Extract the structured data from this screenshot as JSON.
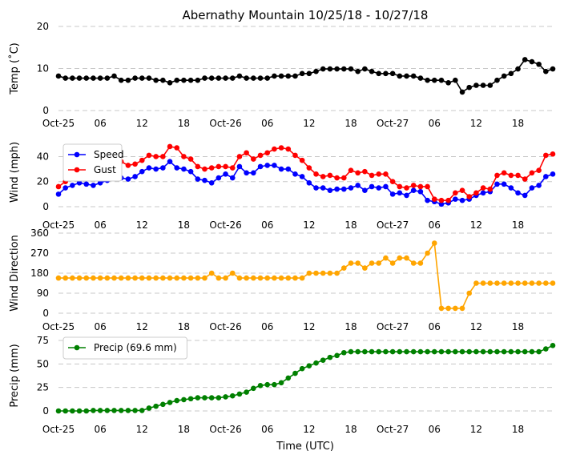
{
  "title": "Abernathy Mountain 10/25/18 - 10/27/18",
  "xlabel": "Time (UTC)",
  "x_tick_labels": [
    "Oct-25",
    "06",
    "12",
    "18",
    "Oct-26",
    "06",
    "12",
    "18",
    "Oct-27",
    "06",
    "12",
    "18"
  ],
  "x_tick_hours": [
    0,
    6,
    12,
    18,
    24,
    30,
    36,
    42,
    48,
    54,
    60,
    66
  ],
  "chart_data": [
    {
      "type": "line",
      "ylabel": "Temp ($^\\circ$C)",
      "ylabel_display": "Temp (˚C)",
      "ylim": [
        0,
        20
      ],
      "yticks": [
        0,
        10,
        20
      ],
      "xlim": [
        0,
        71
      ],
      "series": [
        {
          "name": "Temp",
          "color": "#000000",
          "x_hours": [
            0,
            1,
            2,
            3,
            4,
            5,
            6,
            7,
            8,
            9,
            10,
            11,
            12,
            13,
            14,
            15,
            16,
            17,
            18,
            19,
            20,
            21,
            22,
            23,
            24,
            25,
            26,
            27,
            28,
            29,
            30,
            31,
            32,
            33,
            34,
            35,
            36,
            37,
            38,
            39,
            40,
            41,
            42,
            43,
            44,
            45,
            46,
            47,
            48,
            49,
            50,
            51,
            52,
            53,
            54,
            55,
            56,
            57,
            58,
            59,
            60,
            61,
            62,
            63,
            64,
            65,
            66,
            67,
            68,
            69,
            70,
            71
          ],
          "values": [
            8.2,
            7.7,
            7.7,
            7.7,
            7.7,
            7.7,
            7.7,
            7.7,
            8.2,
            7.2,
            7.2,
            7.7,
            7.7,
            7.7,
            7.2,
            7.2,
            6.6,
            7.2,
            7.2,
            7.2,
            7.2,
            7.7,
            7.7,
            7.7,
            7.7,
            7.7,
            8.2,
            7.7,
            7.7,
            7.7,
            7.7,
            8.2,
            8.2,
            8.2,
            8.2,
            8.8,
            8.8,
            9.3,
            9.9,
            9.9,
            9.9,
            9.9,
            9.9,
            9.3,
            9.9,
            9.3,
            8.8,
            8.8,
            8.8,
            8.2,
            8.2,
            8.2,
            7.7,
            7.2,
            7.2,
            7.2,
            6.6,
            7.2,
            4.4,
            5.5,
            6.0,
            6.0,
            6.0,
            7.2,
            8.2,
            8.8,
            9.9,
            12.1,
            11.6,
            11.0,
            9.3,
            9.9
          ]
        }
      ]
    },
    {
      "type": "line",
      "ylabel": "Wind (mph)",
      "ylim": [
        0,
        55
      ],
      "yticks": [
        0,
        20,
        40
      ],
      "xlim": [
        0,
        71
      ],
      "legend": "top-left",
      "series": [
        {
          "name": "Speed",
          "color": "#0000ff",
          "x_hours": [
            0,
            1,
            2,
            3,
            4,
            5,
            6,
            7,
            8,
            9,
            10,
            11,
            12,
            13,
            14,
            15,
            16,
            17,
            18,
            19,
            20,
            21,
            22,
            23,
            24,
            25,
            26,
            27,
            28,
            29,
            30,
            31,
            32,
            33,
            34,
            35,
            36,
            37,
            38,
            39,
            40,
            41,
            42,
            43,
            44,
            45,
            46,
            47,
            48,
            49,
            50,
            51,
            52,
            53,
            54,
            55,
            56,
            57,
            58,
            59,
            60,
            61,
            62,
            63,
            64,
            65,
            66,
            67,
            68,
            69,
            70,
            71
          ],
          "values": [
            10,
            15,
            17,
            19,
            18,
            17,
            19,
            21,
            23,
            23,
            22,
            24,
            28,
            31,
            30,
            31,
            36,
            31,
            30,
            28,
            22,
            21,
            19,
            23,
            26,
            23,
            32,
            27,
            27,
            32,
            33,
            33,
            30,
            30,
            26,
            24,
            19,
            15,
            15,
            13,
            14,
            14,
            15,
            17,
            13,
            16,
            15,
            16,
            10,
            11,
            9,
            13,
            12,
            5,
            4,
            2,
            3,
            6,
            5,
            6,
            9,
            11,
            12,
            18,
            18,
            15,
            11,
            9,
            15,
            17,
            24,
            26
          ]
        },
        {
          "name": "Gust",
          "color": "#ff0000",
          "x_hours": [
            0,
            1,
            2,
            3,
            4,
            5,
            6,
            7,
            8,
            9,
            10,
            11,
            12,
            13,
            14,
            15,
            16,
            17,
            18,
            19,
            20,
            21,
            22,
            23,
            24,
            25,
            26,
            27,
            28,
            29,
            30,
            31,
            32,
            33,
            34,
            35,
            36,
            37,
            38,
            39,
            40,
            41,
            42,
            43,
            44,
            45,
            46,
            47,
            48,
            49,
            50,
            51,
            52,
            53,
            54,
            55,
            56,
            57,
            58,
            59,
            60,
            61,
            62,
            63,
            64,
            65,
            66,
            67,
            68,
            69,
            70,
            71
          ],
          "values": [
            16,
            20,
            24,
            28,
            27,
            28,
            29,
            30,
            33,
            36,
            33,
            34,
            37,
            41,
            40,
            40,
            48,
            47,
            40,
            38,
            32,
            30,
            31,
            32,
            32,
            31,
            40,
            43,
            38,
            41,
            43,
            46,
            47,
            46,
            41,
            37,
            31,
            26,
            24,
            25,
            23,
            23,
            29,
            27,
            28,
            25,
            26,
            26,
            20,
            16,
            15,
            17,
            16,
            16,
            6,
            5,
            5,
            11,
            13,
            8,
            11,
            15,
            14,
            25,
            27,
            25,
            25,
            22,
            27,
            29,
            41,
            42
          ]
        }
      ]
    },
    {
      "type": "line",
      "ylabel": "Wind Direction",
      "ylim": [
        0,
        360
      ],
      "yticks": [
        0,
        90,
        180,
        270,
        360
      ],
      "xlim": [
        0,
        71
      ],
      "series": [
        {
          "name": "Direction",
          "color": "#ffa500",
          "x_hours": [
            0,
            1,
            2,
            3,
            4,
            5,
            6,
            7,
            8,
            9,
            10,
            11,
            12,
            13,
            14,
            15,
            16,
            17,
            18,
            19,
            20,
            21,
            22,
            23,
            24,
            25,
            26,
            27,
            28,
            29,
            30,
            31,
            32,
            33,
            34,
            35,
            36,
            37,
            38,
            39,
            40,
            41,
            42,
            43,
            44,
            45,
            46,
            47,
            48,
            49,
            50,
            51,
            52,
            53,
            54,
            55,
            56,
            57,
            58,
            59,
            60,
            61,
            62,
            63,
            64,
            65,
            66,
            67,
            68,
            69,
            70,
            71
          ],
          "values": [
            158,
            158,
            158,
            158,
            158,
            158,
            158,
            158,
            158,
            158,
            158,
            158,
            158,
            158,
            158,
            158,
            158,
            158,
            158,
            158,
            158,
            158,
            180,
            158,
            158,
            180,
            158,
            158,
            158,
            158,
            158,
            158,
            158,
            158,
            158,
            158,
            180,
            180,
            180,
            180,
            180,
            203,
            225,
            225,
            203,
            225,
            225,
            248,
            225,
            248,
            248,
            225,
            225,
            270,
            315,
            22,
            22,
            22,
            22,
            90,
            135,
            135,
            135,
            135,
            135,
            135,
            135,
            135,
            135,
            135,
            135,
            135
          ]
        }
      ]
    },
    {
      "type": "line",
      "ylabel": "Precip (mm)",
      "ylim": [
        0,
        75
      ],
      "yticks": [
        0,
        25,
        50,
        75
      ],
      "xlim": [
        0,
        71
      ],
      "legend": "top-left",
      "series": [
        {
          "name": "Precip (69.6 mm)",
          "color": "#008000",
          "x_hours": [
            0,
            1,
            2,
            3,
            4,
            5,
            6,
            7,
            8,
            9,
            10,
            11,
            12,
            13,
            14,
            15,
            16,
            17,
            18,
            19,
            20,
            21,
            22,
            23,
            24,
            25,
            26,
            27,
            28,
            29,
            30,
            31,
            32,
            33,
            34,
            35,
            36,
            37,
            38,
            39,
            40,
            41,
            42,
            43,
            44,
            45,
            46,
            47,
            48,
            49,
            50,
            51,
            52,
            53,
            54,
            55,
            56,
            57,
            58,
            59,
            60,
            61,
            62,
            63,
            64,
            65,
            66,
            67,
            68,
            69,
            70,
            71
          ],
          "values": [
            0,
            0,
            0,
            0,
            0,
            0.5,
            0.5,
            0.5,
            0.5,
            0.5,
            0.5,
            0.5,
            0.5,
            3,
            5,
            7,
            9,
            11,
            12,
            13,
            14,
            14,
            14,
            14,
            15,
            16,
            18,
            20,
            24,
            27,
            28,
            28,
            30,
            35,
            40,
            45,
            48,
            51,
            54,
            57,
            59,
            62,
            63,
            63,
            63,
            63,
            63,
            63,
            63,
            63,
            63,
            63,
            63,
            63,
            63,
            63,
            63,
            63,
            63,
            63,
            63,
            63,
            63,
            63,
            63,
            63,
            63,
            63,
            63,
            63,
            66,
            69.6
          ]
        }
      ]
    }
  ]
}
